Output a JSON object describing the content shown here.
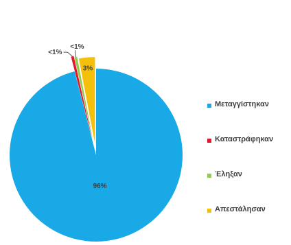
{
  "chart_data": {
    "type": "pie",
    "categories": [
      "Μεταγγίστηκαν",
      "Καταστράφηκαν",
      "Έληξαν",
      "Απεστάλησαν"
    ],
    "values": [
      96,
      0.5,
      0.5,
      3
    ],
    "data_labels": [
      "96%",
      "<1%",
      "<1%",
      "3%"
    ],
    "colors": [
      "#19a9e6",
      "#e2172c",
      "#92cd4f",
      "#f4c00c"
    ],
    "legend_position": "right",
    "exploded_slices": [
      "Καταστράφηκαν",
      "Έληξαν",
      "Απεστάλησαν"
    ]
  },
  "legend": {
    "items": [
      {
        "label": "Μεταγγίστηκαν",
        "color": "#19a9e6"
      },
      {
        "label": "Καταστράφηκαν",
        "color": "#e2172c"
      },
      {
        "label": "Έληξαν",
        "color": "#92cd4f"
      },
      {
        "label": "Απεστάλησαν",
        "color": "#f4c00c"
      }
    ]
  }
}
